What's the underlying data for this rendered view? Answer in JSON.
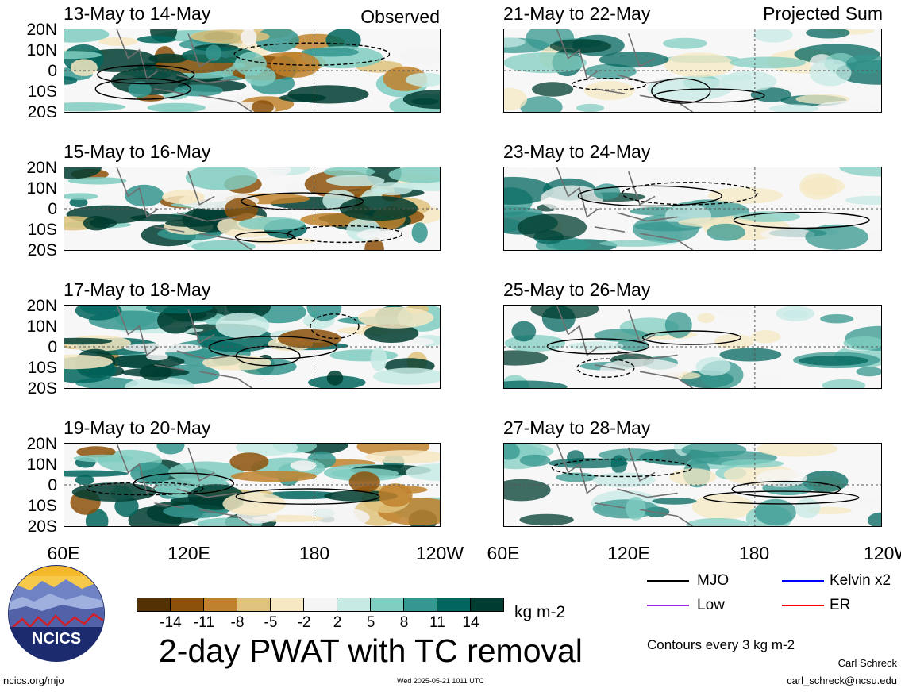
{
  "headers": {
    "observed": "Observed",
    "projected": "Projected Sum"
  },
  "panels": [
    {
      "title": "13-May to 14-May"
    },
    {
      "title": "21-May to 22-May"
    },
    {
      "title": "15-May to 16-May"
    },
    {
      "title": "23-May to 24-May"
    },
    {
      "title": "17-May to 18-May"
    },
    {
      "title": "25-May to 26-May"
    },
    {
      "title": "19-May to 20-May"
    },
    {
      "title": "27-May to 28-May"
    }
  ],
  "lat_labels": [
    "20N",
    "10N",
    "0",
    "10S",
    "20S"
  ],
  "lon_labels": [
    "60E",
    "120E",
    "180",
    "120W"
  ],
  "colorbar": {
    "colors": [
      "#543005",
      "#8c510a",
      "#bf812d",
      "#dfc27d",
      "#f6e8c3",
      "#f5f5f5",
      "#c7eae5",
      "#80cdc1",
      "#35978f",
      "#01665e",
      "#003c30"
    ],
    "ticks": [
      "-14",
      "-11",
      "-8",
      "-5",
      "-2",
      "2",
      "5",
      "8",
      "11",
      "14"
    ],
    "unit": "kg m-2"
  },
  "main_title": "2-day PWAT with TC removal",
  "legend": {
    "mjo": {
      "label": "MJO",
      "color": "#000000"
    },
    "kelvin": {
      "label": "Kelvin x2",
      "color": "#0000ff"
    },
    "low": {
      "label": "Low",
      "color": "#a020f0"
    },
    "er": {
      "label": "ER",
      "color": "#ff0000"
    }
  },
  "contour_note": "Contours every 3 kg m-2",
  "author": "Carl Schreck",
  "email": "carl_schreck@ncsu.edu",
  "site": "ncics.org/mjo",
  "timestamp": "Wed 2025-05-21 1011 UTC",
  "logo_text": "NCICS"
}
